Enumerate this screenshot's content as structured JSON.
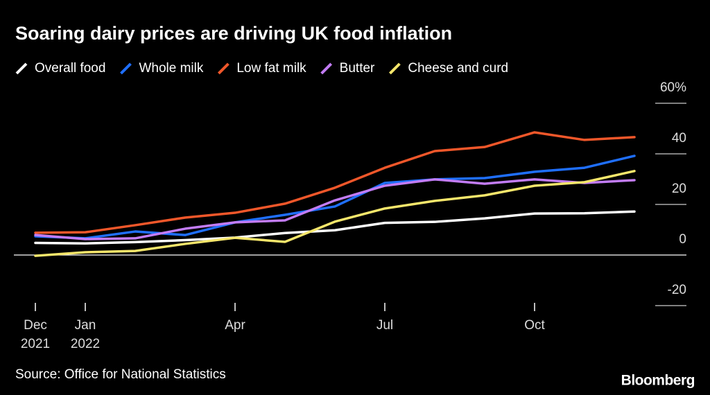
{
  "chart_data": {
    "type": "line",
    "title": "Soaring dairy prices are driving UK food inflation",
    "source": "Source: Office for National Statistics",
    "brand": "Bloomberg",
    "categories": [
      "Dec",
      "Jan",
      null,
      null,
      "Apr",
      null,
      null,
      "Jul",
      null,
      null,
      "Oct",
      null,
      null
    ],
    "category_years": [
      "2021",
      "2022",
      null,
      null,
      null,
      null,
      null,
      null,
      null,
      null,
      null,
      null,
      null
    ],
    "series": [
      {
        "name": "Overall food",
        "color": "#ffffff",
        "values": [
          4.8,
          4.6,
          5.1,
          5.9,
          6.9,
          8.7,
          9.8,
          12.7,
          13.1,
          14.5,
          16.4,
          16.5,
          17.2
        ]
      },
      {
        "name": "Whole milk",
        "color": "#1f6fff",
        "values": [
          7.4,
          6.6,
          9.3,
          7.9,
          12.9,
          15.9,
          19.2,
          28.5,
          29.9,
          30.4,
          32.9,
          34.5,
          39.2
        ]
      },
      {
        "name": "Low fat milk",
        "color": "#f0572a",
        "values": [
          8.8,
          9.0,
          11.8,
          14.8,
          16.7,
          20.3,
          26.6,
          34.5,
          41.1,
          42.7,
          48.5,
          45.5,
          46.6
        ]
      },
      {
        "name": "Butter",
        "color": "#c27cf4",
        "values": [
          7.9,
          6.3,
          6.6,
          10.4,
          12.9,
          13.7,
          21.6,
          27.4,
          29.9,
          28.2,
          29.9,
          28.5,
          29.6
        ]
      },
      {
        "name": "Cheese and curd",
        "color": "#f5e66b",
        "values": [
          -0.3,
          1.1,
          1.6,
          4.4,
          6.8,
          5.2,
          13.2,
          18.4,
          21.4,
          23.6,
          27.4,
          28.8,
          33.2
        ]
      }
    ],
    "ylim": [
      -20,
      60
    ],
    "yticks": [
      -20,
      0,
      20,
      40,
      {
        "value": 60,
        "label": "60%"
      }
    ]
  }
}
